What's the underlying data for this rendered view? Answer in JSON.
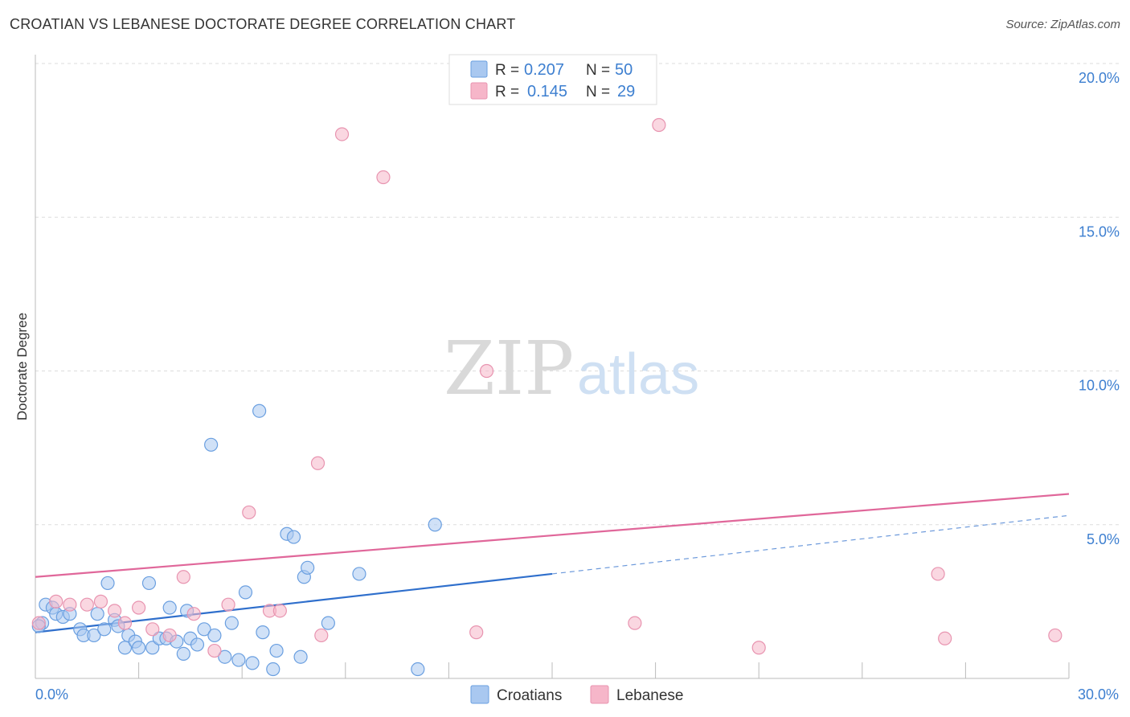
{
  "title": "CROATIAN VS LEBANESE DOCTORATE DEGREE CORRELATION CHART",
  "source": "Source: ZipAtlas.com",
  "watermark": {
    "zip": "ZIP",
    "atlas": "atlas"
  },
  "legend_top": {
    "rows": [
      {
        "r_label": "R =",
        "r_value": "0.207",
        "n_label": "N =",
        "n_value": "50",
        "color": "#a9c8f0"
      },
      {
        "r_label": "R =",
        "r_value": "0.145",
        "n_label": "N =",
        "n_value": "29",
        "color": "#f6b6c9"
      }
    ]
  },
  "legend_bottom": [
    {
      "name": "Croatians",
      "color": "#a9c8f0"
    },
    {
      "name": "Lebanese",
      "color": "#f6b6c9"
    }
  ],
  "colors": {
    "blue_fill": "#a9c8f0",
    "blue_stroke": "#6a9fe0",
    "blue_line": "#2f6fcc",
    "pink_fill": "#f6b6c9",
    "pink_stroke": "#e894b0",
    "pink_line": "#e0679a",
    "axis_label": "#3d7fd0",
    "grid": "#dddddd"
  },
  "chart_data": {
    "type": "scatter",
    "title": "CROATIAN VS LEBANESE DOCTORATE DEGREE CORRELATION CHART",
    "xlabel": "",
    "ylabel": "Doctorate Degree",
    "xlim": [
      0,
      30
    ],
    "ylim": [
      0,
      21
    ],
    "x_tick_labels": [
      {
        "value": 0,
        "label": "0.0%"
      },
      {
        "value": 30,
        "label": "30.0%"
      }
    ],
    "y_tick_labels": [
      {
        "value": 5,
        "label": "5.0%"
      },
      {
        "value": 10,
        "label": "10.0%"
      },
      {
        "value": 15,
        "label": "15.0%"
      },
      {
        "value": 20,
        "label": "20.0%"
      }
    ],
    "grid": true,
    "legend_position": "top-center",
    "series": [
      {
        "name": "Croatians",
        "r": 0.207,
        "n": 50,
        "trend": {
          "x0": 0,
          "y0": 1.5,
          "x1": 15,
          "y1": 3.4,
          "dashed_to_x": 30,
          "dashed_to_y": 5.3
        },
        "points": [
          [
            0.2,
            1.8
          ],
          [
            0.3,
            2.4
          ],
          [
            0.5,
            2.3
          ],
          [
            0.6,
            2.1
          ],
          [
            0.8,
            2.0
          ],
          [
            1.0,
            2.1
          ],
          [
            1.3,
            1.6
          ],
          [
            1.4,
            1.4
          ],
          [
            1.7,
            1.4
          ],
          [
            1.8,
            2.1
          ],
          [
            2.0,
            1.6
          ],
          [
            2.1,
            3.1
          ],
          [
            2.3,
            1.9
          ],
          [
            2.4,
            1.7
          ],
          [
            2.6,
            1.0
          ],
          [
            2.7,
            1.4
          ],
          [
            2.9,
            1.2
          ],
          [
            3.0,
            1.0
          ],
          [
            3.3,
            3.1
          ],
          [
            3.4,
            1.0
          ],
          [
            3.6,
            1.3
          ],
          [
            3.8,
            1.3
          ],
          [
            3.9,
            2.3
          ],
          [
            4.1,
            1.2
          ],
          [
            4.3,
            0.8
          ],
          [
            4.4,
            2.2
          ],
          [
            4.5,
            1.3
          ],
          [
            4.7,
            1.1
          ],
          [
            4.9,
            1.6
          ],
          [
            5.1,
            7.6
          ],
          [
            5.2,
            1.4
          ],
          [
            5.5,
            0.7
          ],
          [
            5.7,
            1.8
          ],
          [
            5.9,
            0.6
          ],
          [
            6.1,
            2.8
          ],
          [
            6.3,
            0.5
          ],
          [
            6.5,
            8.7
          ],
          [
            6.6,
            1.5
          ],
          [
            6.9,
            0.3
          ],
          [
            7.0,
            0.9
          ],
          [
            7.3,
            4.7
          ],
          [
            7.5,
            4.6
          ],
          [
            7.7,
            0.7
          ],
          [
            7.8,
            3.3
          ],
          [
            7.9,
            3.6
          ],
          [
            8.5,
            1.8
          ],
          [
            9.4,
            3.4
          ],
          [
            11.1,
            0.3
          ],
          [
            11.6,
            5.0
          ],
          [
            0.1,
            1.7
          ]
        ]
      },
      {
        "name": "Lebanese",
        "r": 0.145,
        "n": 29,
        "trend": {
          "x0": 0,
          "y0": 3.3,
          "x1": 30,
          "y1": 6.0
        },
        "points": [
          [
            0.1,
            1.8
          ],
          [
            0.6,
            2.5
          ],
          [
            1.0,
            2.4
          ],
          [
            1.5,
            2.4
          ],
          [
            1.9,
            2.5
          ],
          [
            2.3,
            2.2
          ],
          [
            2.6,
            1.8
          ],
          [
            3.0,
            2.3
          ],
          [
            3.4,
            1.6
          ],
          [
            3.9,
            1.4
          ],
          [
            4.3,
            3.3
          ],
          [
            4.6,
            2.1
          ],
          [
            5.2,
            0.9
          ],
          [
            5.6,
            2.4
          ],
          [
            6.2,
            5.4
          ],
          [
            6.8,
            2.2
          ],
          [
            7.1,
            2.2
          ],
          [
            8.2,
            7.0
          ],
          [
            8.3,
            1.4
          ],
          [
            8.9,
            17.7
          ],
          [
            10.1,
            16.3
          ],
          [
            12.8,
            1.5
          ],
          [
            13.1,
            10.0
          ],
          [
            17.4,
            1.8
          ],
          [
            18.1,
            18.0
          ],
          [
            21.0,
            1.0
          ],
          [
            26.2,
            3.4
          ],
          [
            26.4,
            1.3
          ],
          [
            29.6,
            1.4
          ]
        ]
      }
    ]
  }
}
